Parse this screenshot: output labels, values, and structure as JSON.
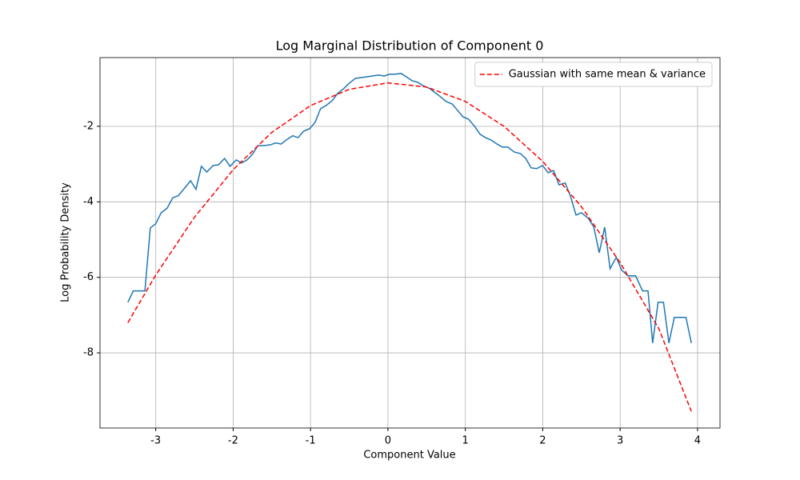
{
  "chart_data": {
    "type": "line",
    "title": "Log Marginal Distribution of Component 0",
    "x_label": "Component Value",
    "y_label": "Log Probability Density",
    "xlim": [
      -3.72,
      4.29
    ],
    "ylim": [
      -9.99,
      -0.18
    ],
    "xticks": [
      -3,
      -2,
      -1,
      0,
      1,
      2,
      3,
      4
    ],
    "yticks": [
      -2,
      -4,
      -6,
      -8
    ],
    "grid": true,
    "legend": "upper right",
    "series": [
      {
        "color": "#1f77b4",
        "dash": "solid",
        "x": [
          -3.36,
          -3.29,
          -3.14,
          -3.07,
          -3.0,
          -2.93,
          -2.85,
          -2.78,
          -2.71,
          -2.64,
          -2.55,
          -2.48,
          -2.41,
          -2.34,
          -2.26,
          -2.19,
          -2.11,
          -2.04,
          -1.96,
          -1.89,
          -1.82,
          -1.75,
          -1.68,
          -1.6,
          -1.52,
          -1.45,
          -1.38,
          -1.3,
          -1.23,
          -1.16,
          -1.09,
          -1.01,
          -0.94,
          -0.87,
          -0.8,
          -0.72,
          -0.65,
          -0.57,
          -0.5,
          -0.42,
          -0.35,
          -0.28,
          -0.21,
          -0.12,
          -0.05,
          0.02,
          0.09,
          0.17,
          0.24,
          0.31,
          0.38,
          0.47,
          0.54,
          0.61,
          0.68,
          0.75,
          0.83,
          0.9,
          0.97,
          1.04,
          1.12,
          1.19,
          1.26,
          1.33,
          1.41,
          1.48,
          1.55,
          1.63,
          1.71,
          1.78,
          1.85,
          1.92,
          2.0,
          2.07,
          2.14,
          2.21,
          2.29,
          2.36,
          2.43,
          2.5,
          2.59,
          2.66,
          2.73,
          2.8,
          2.87,
          2.95,
          3.02,
          3.1,
          3.2,
          3.29,
          3.36,
          3.42,
          3.49,
          3.56,
          3.63,
          3.7,
          3.77,
          3.85,
          3.92
        ],
        "values": [
          -6.66,
          -6.36,
          -6.36,
          -4.69,
          -4.58,
          -4.29,
          -4.16,
          -3.89,
          -3.84,
          -3.67,
          -3.44,
          -3.67,
          -3.06,
          -3.21,
          -3.04,
          -3.02,
          -2.85,
          -3.06,
          -2.89,
          -2.97,
          -2.89,
          -2.74,
          -2.51,
          -2.51,
          -2.49,
          -2.44,
          -2.47,
          -2.34,
          -2.25,
          -2.3,
          -2.13,
          -2.06,
          -1.89,
          -1.53,
          -1.45,
          -1.32,
          -1.13,
          -1.0,
          -0.86,
          -0.73,
          -0.71,
          -0.69,
          -0.67,
          -0.64,
          -0.67,
          -0.62,
          -0.62,
          -0.6,
          -0.69,
          -0.79,
          -0.83,
          -0.94,
          -1.0,
          -1.11,
          -1.22,
          -1.34,
          -1.41,
          -1.58,
          -1.75,
          -1.81,
          -2.0,
          -2.21,
          -2.3,
          -2.36,
          -2.47,
          -2.55,
          -2.55,
          -2.68,
          -2.72,
          -2.85,
          -3.1,
          -3.12,
          -3.04,
          -3.23,
          -3.17,
          -3.55,
          -3.5,
          -3.86,
          -4.35,
          -4.29,
          -4.44,
          -4.67,
          -5.35,
          -4.67,
          -5.77,
          -5.47,
          -5.81,
          -5.96,
          -5.96,
          -6.36,
          -6.36,
          -7.74,
          -6.66,
          -6.66,
          -7.74,
          -7.06,
          -7.06,
          -7.06,
          -7.74
        ]
      },
      {
        "name": "Gaussian with same mean & variance",
        "color": "#ff0000",
        "dash": "dashed",
        "x": [
          -3.36,
          -3.0,
          -2.5,
          -2.0,
          -1.5,
          -1.0,
          -0.5,
          0.0,
          0.5,
          1.0,
          1.5,
          2.0,
          2.5,
          3.0,
          3.5,
          3.92
        ],
        "values": [
          -7.2,
          -5.94,
          -4.41,
          -3.15,
          -2.16,
          -1.45,
          -1.02,
          -0.85,
          -0.96,
          -1.34,
          -2.0,
          -2.93,
          -4.13,
          -5.61,
          -7.36,
          -9.55
        ]
      }
    ]
  }
}
